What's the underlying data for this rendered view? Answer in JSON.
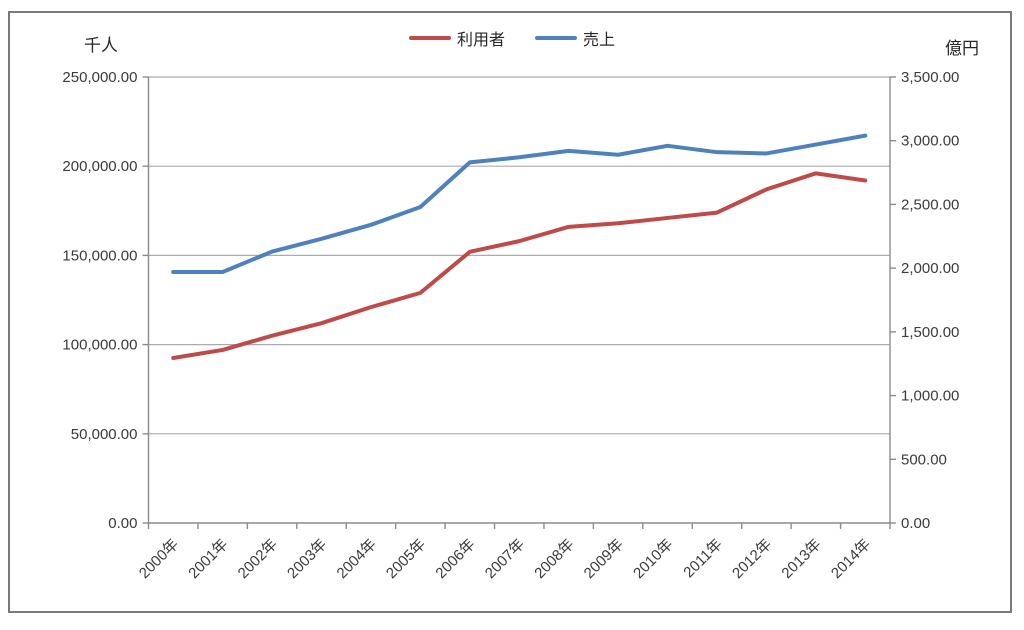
{
  "chart_data": {
    "type": "line",
    "title": "",
    "categories": [
      "2000年",
      "2001年",
      "2002年",
      "2003年",
      "2004年",
      "2005年",
      "2006年",
      "2007年",
      "2008年",
      "2009年",
      "2010年",
      "2011年",
      "2012年",
      "2013年",
      "2014年"
    ],
    "series": [
      {
        "name": "利用者",
        "axis": "left",
        "color": "#BE4B48",
        "values": [
          92500,
          97000,
          105000,
          112000,
          121000,
          129000,
          152000,
          158000,
          166000,
          168000,
          171000,
          174000,
          187000,
          196000,
          192000
        ]
      },
      {
        "name": "売上",
        "axis": "right",
        "color": "#4F81BD",
        "values": [
          1970,
          1970,
          2130,
          2230,
          2340,
          2480,
          2830,
          2870,
          2920,
          2890,
          2960,
          2910,
          2900,
          2970,
          3040
        ]
      }
    ],
    "left_axis": {
      "title": "千人",
      "min": 0,
      "max": 250000,
      "step": 50000,
      "tick_labels": [
        "250,000.00",
        "200,000.00",
        "150,000.00",
        "100,000.00",
        "50,000.00",
        "0.00"
      ]
    },
    "right_axis": {
      "title": "億円",
      "min": 0,
      "max": 3500,
      "step": 500,
      "tick_labels": [
        "3,500.00",
        "3,000.00",
        "2,500.00",
        "2,000.00",
        "1,500.00",
        "1,000.00",
        "500.00",
        "0.00"
      ]
    },
    "legend_position": "top",
    "grid": "horizontal",
    "xlabel": "",
    "ylabel_left": "千人",
    "ylabel_right": "億円"
  },
  "colors": {
    "series_users": "#BE4B48",
    "series_sales": "#4F81BD",
    "gridline": "#ababab",
    "axis_line": "#8c8c8c",
    "frame_border": "#7a7a7a",
    "text": "#3a3a3a"
  }
}
